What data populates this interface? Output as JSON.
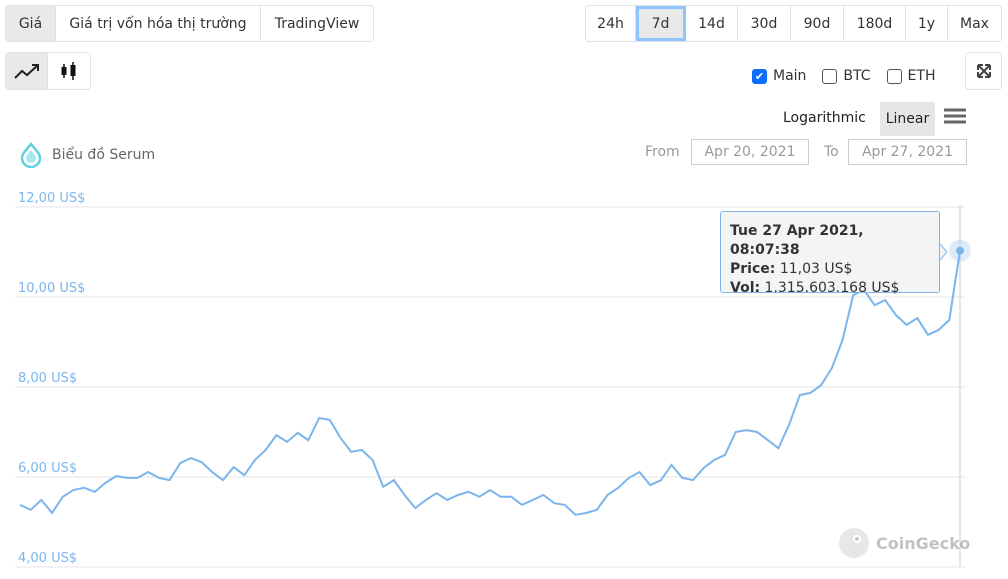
{
  "tabs": [
    "Giá",
    "Giá trị vốn hóa thị trường",
    "TradingView"
  ],
  "active_tab": "Giá",
  "chart_types": [
    "line-chart-icon",
    "candlestick-icon"
  ],
  "ranges": [
    "24h",
    "7d",
    "14d",
    "30d",
    "90d",
    "180d",
    "1y",
    "Max"
  ],
  "active_range": "7d",
  "series_toggles": [
    {
      "label": "Main",
      "checked": true
    },
    {
      "label": "BTC",
      "checked": false
    },
    {
      "label": "ETH",
      "checked": false
    }
  ],
  "scale": {
    "log_label": "Logarithmic",
    "linear_label": "Linear",
    "active": "Linear"
  },
  "chart_title": "Biểu đồ Serum",
  "date_range": {
    "from_label": "From",
    "from": "Apr 20, 2021",
    "to_label": "To",
    "to": "Apr 27, 2021"
  },
  "tooltip": {
    "date": "Tue 27 Apr 2021, 08:07:38",
    "price_label": "Price:",
    "price": "11,03 US$",
    "vol_label": "Vol:",
    "vol": "1.315.603.168 US$"
  },
  "watermark": "CoinGecko",
  "colors": {
    "line": "#7cb5ec",
    "accent": "#90c4ff"
  },
  "chart_data": {
    "type": "line",
    "x_range": [
      "Apr 20, 2021",
      "Apr 27, 2021"
    ],
    "ylim": [
      4,
      12
    ],
    "yticks": [
      "4,00 US$",
      "6,00 US$",
      "8,00 US$",
      "10,00 US$",
      "12,00 US$"
    ],
    "grid": true,
    "values": [
      5.38,
      5.27,
      5.49,
      5.2,
      5.56,
      5.71,
      5.76,
      5.67,
      5.87,
      6.02,
      5.98,
      5.98,
      6.11,
      5.98,
      5.93,
      6.31,
      6.42,
      6.33,
      6.11,
      5.93,
      6.22,
      6.04,
      6.38,
      6.6,
      6.93,
      6.78,
      6.98,
      6.82,
      7.31,
      7.27,
      6.87,
      6.56,
      6.6,
      6.38,
      5.78,
      5.93,
      5.6,
      5.31,
      5.49,
      5.64,
      5.49,
      5.6,
      5.67,
      5.56,
      5.71,
      5.56,
      5.56,
      5.38,
      5.49,
      5.6,
      5.42,
      5.38,
      5.16,
      5.2,
      5.27,
      5.6,
      5.76,
      5.98,
      6.11,
      5.82,
      5.93,
      6.27,
      5.98,
      5.93,
      6.2,
      6.38,
      6.49,
      7.0,
      7.04,
      7.0,
      6.82,
      6.64,
      7.16,
      7.82,
      7.87,
      8.04,
      8.42,
      9.04,
      10.04,
      10.16,
      9.82,
      9.93,
      9.6,
      9.38,
      9.53,
      9.16,
      9.27,
      9.49,
      11.03
    ]
  }
}
